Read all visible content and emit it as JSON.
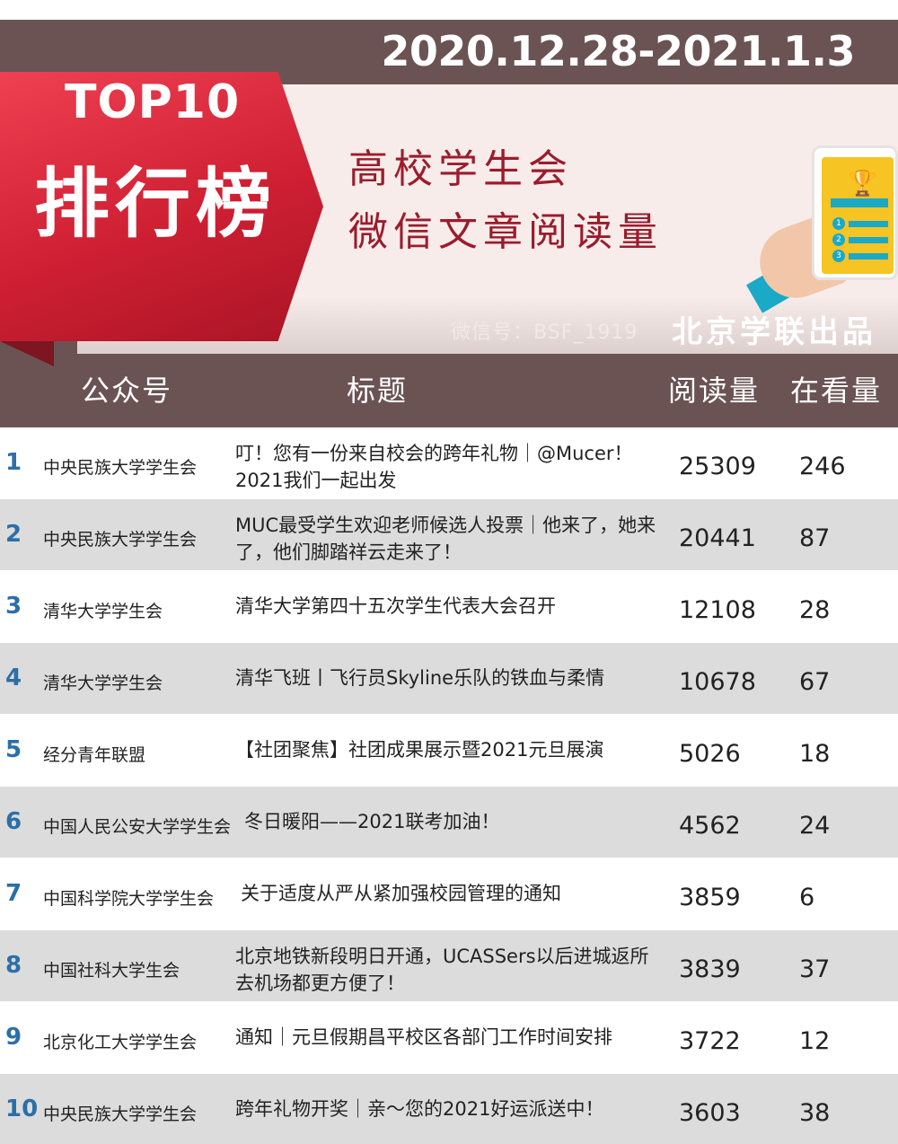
{
  "header": {
    "date_range": "2020.12.28-2021.1.3",
    "badge_top": "TOP10",
    "badge_title": "排行榜",
    "subtitle_line1": "高校学生会",
    "subtitle_line2": "微信文章阅读量",
    "wechat_id": "微信号：BSF_1919",
    "publisher": "北京学联出品"
  },
  "colors": {
    "band": "#6b5354",
    "ribbon": "#cf1f33",
    "subtitle": "#9b1c2c",
    "rank": "#2b6fa8",
    "row_alt": "#dcdcdc"
  },
  "icons": {
    "phone": "phone-trophy-illustration",
    "trophy": "trophy-icon"
  },
  "columns": {
    "account": "公众号",
    "title": "标题",
    "reads": "阅读量",
    "watching": "在看量"
  },
  "rows": [
    {
      "rank": "1",
      "account": "中央民族大学学生会",
      "title": "叮！您有一份来自校会的跨年礼物｜@Mucer！2021我们一起出发",
      "reads": "25309",
      "watching": "246"
    },
    {
      "rank": "2",
      "account": "中央民族大学学生会",
      "title": "MUC最受学生欢迎老师候选人投票｜他来了，她来了，他们脚踏祥云走来了！",
      "reads": "20441",
      "watching": "87"
    },
    {
      "rank": "3",
      "account": "清华大学学生会",
      "title": "清华大学第四十五次学生代表大会召开",
      "reads": "12108",
      "watching": "28"
    },
    {
      "rank": "4",
      "account": "清华大学学生会",
      "title": "清华飞班丨飞行员Skyline乐队的铁血与柔情",
      "reads": "10678",
      "watching": "67"
    },
    {
      "rank": "5",
      "account": "经分青年联盟",
      "title": "【社团聚焦】社团成果展示暨2021元旦展演",
      "reads": "5026",
      "watching": "18"
    },
    {
      "rank": "6",
      "account": "中国人民公安大学学生会",
      "title": "冬日暖阳——2021联考加油！",
      "reads": "4562",
      "watching": "24"
    },
    {
      "rank": "7",
      "account": "中国科学院大学学生会",
      "title": "关于适度从严从紧加强校园管理的通知",
      "reads": "3859",
      "watching": "6"
    },
    {
      "rank": "8",
      "account": "中国社科大学生会",
      "title": "北京地铁新段明日开通，UCASSers以后进城返所去机场都更方便了！",
      "reads": "3839",
      "watching": "37"
    },
    {
      "rank": "9",
      "account": "北京化工大学学生会",
      "title": "通知｜元旦假期昌平校区各部门工作时间安排",
      "reads": "3722",
      "watching": "12"
    },
    {
      "rank": "10",
      "account": "中央民族大学学生会",
      "title": "跨年礼物开奖｜亲～您的2021好运派送中！",
      "reads": "3603",
      "watching": "38"
    }
  ]
}
